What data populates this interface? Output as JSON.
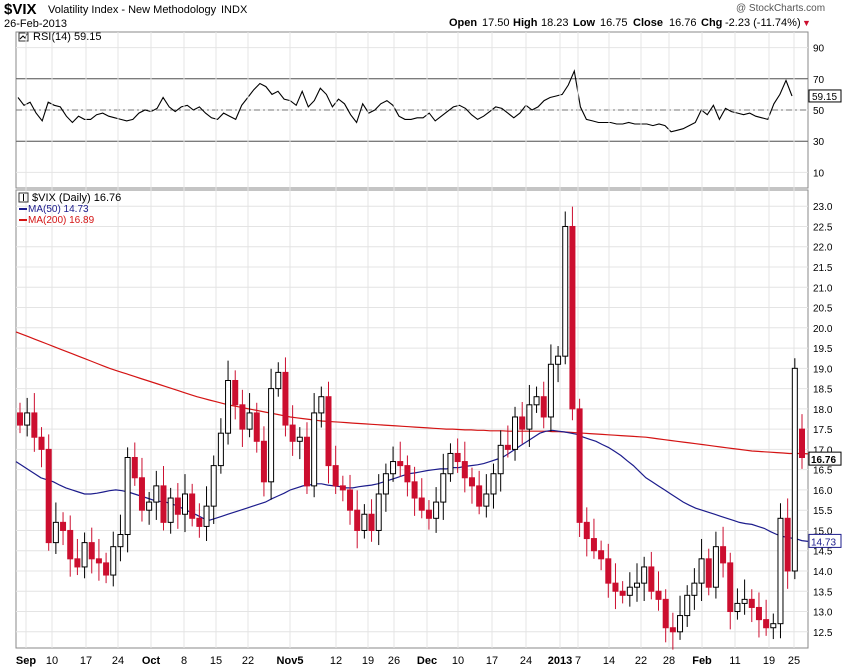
{
  "header": {
    "symbol": "$VIX",
    "name": "Volatility Index - New Methodology",
    "exchange": "INDX",
    "date": "26-Feb-2013",
    "watermark": "@ StockCharts.com",
    "open_label": "Open",
    "open": "17.50",
    "high_label": "High",
    "high": "18.23",
    "low_label": "Low",
    "low": "16.75",
    "close_label": "Close",
    "close": "16.76",
    "chg_label": "Chg",
    "chg": "-2.23 (-11.74%)",
    "chg_arrow": "▼"
  },
  "colors": {
    "up_candle": "#000000",
    "down_candle": "#cc0e2f",
    "ma50": "#1c1c8c",
    "ma200": "#d41414",
    "rsi_line": "#000000",
    "grid": "#e4e4e4"
  },
  "chart_data": [
    {
      "type": "line",
      "title": "RSI(14) 59.15",
      "series": [
        {
          "name": "RSI(14)",
          "last_label": "59.15",
          "values": [
            58,
            53,
            55,
            48,
            43,
            55,
            53,
            52,
            46,
            42,
            46,
            44,
            44,
            47,
            48,
            46,
            45,
            44,
            43,
            44,
            48,
            50,
            49,
            51,
            58,
            52,
            49,
            52,
            53,
            50,
            52,
            48,
            45,
            44,
            48,
            46,
            44,
            53,
            58,
            63,
            67,
            65,
            60,
            62,
            57,
            56,
            53,
            62,
            52,
            56,
            64,
            60,
            52,
            57,
            54,
            47,
            42,
            54,
            48,
            50,
            54,
            56,
            53,
            46,
            44,
            44,
            45,
            45,
            48,
            43,
            46,
            49,
            52,
            53,
            51,
            47,
            44,
            46,
            49,
            52,
            51,
            48,
            45,
            48,
            53,
            50,
            52,
            56,
            58,
            59,
            60,
            66,
            75,
            52,
            44,
            43,
            42,
            42,
            42,
            41,
            41,
            42,
            41,
            41,
            41,
            40,
            41,
            40,
            36,
            37,
            38,
            40,
            42,
            50,
            47,
            53,
            44,
            51,
            49,
            48,
            47,
            48,
            46,
            45,
            44,
            54,
            60,
            69,
            59
          ]
        }
      ],
      "yticks": [
        10,
        30,
        50,
        70,
        90
      ],
      "reference_lines": [
        30,
        50,
        70
      ],
      "ylim": [
        0,
        100
      ]
    },
    {
      "type": "candlestick",
      "title": "$VIX (Daily) 16.76",
      "last_label": "16.76",
      "series": [
        {
          "name": "MA(50)",
          "label": "MA(50) 14.73",
          "values": [
            16.7,
            16.6,
            16.5,
            16.4,
            16.3,
            16.25,
            16.2,
            16.12,
            16.05,
            16.0,
            15.95,
            15.9,
            15.9,
            15.92,
            15.95,
            15.98,
            16.0,
            15.98,
            15.95,
            15.9,
            15.85,
            15.8,
            15.75,
            15.72,
            15.7,
            15.65,
            15.6,
            15.52,
            15.45,
            15.38,
            15.3,
            15.25,
            15.3,
            15.35,
            15.4,
            15.45,
            15.5,
            15.55,
            15.6,
            15.65,
            15.7,
            15.78,
            15.85,
            15.92,
            16.0,
            16.05,
            16.1,
            16.12,
            16.15,
            16.15,
            16.12,
            16.1,
            16.08,
            16.05,
            16.05,
            16.08,
            16.1,
            16.12,
            16.15,
            16.2,
            16.25,
            16.3,
            16.35,
            16.4,
            16.42,
            16.45,
            16.48,
            16.5,
            16.52,
            16.52,
            16.55,
            16.55,
            16.58,
            16.6,
            16.62,
            16.65,
            16.7,
            16.75,
            16.8,
            16.9,
            17.0,
            17.1,
            17.2,
            17.3,
            17.4,
            17.45,
            17.47,
            17.45,
            17.43,
            17.4,
            17.37,
            17.3,
            17.25,
            17.2,
            17.12,
            17.05,
            16.95,
            16.85,
            16.72,
            16.6,
            16.45,
            16.3,
            16.2,
            16.1,
            16.0,
            15.9,
            15.8,
            15.7,
            15.62,
            15.55,
            15.5,
            15.45,
            15.4,
            15.35,
            15.3,
            15.25,
            15.2,
            15.17,
            15.15,
            15.1,
            15.05,
            14.97,
            14.9,
            14.85,
            14.82,
            14.8,
            14.75,
            14.73
          ]
        },
        {
          "name": "MA(200)",
          "label": "MA(200) 16.89",
          "values": [
            19.9,
            19.84,
            19.78,
            19.72,
            19.66,
            19.6,
            19.54,
            19.48,
            19.42,
            19.36,
            19.3,
            19.24,
            19.18,
            19.12,
            19.06,
            19.0,
            18.95,
            18.9,
            18.85,
            18.8,
            18.75,
            18.7,
            18.65,
            18.6,
            18.55,
            18.5,
            18.45,
            18.4,
            18.35,
            18.3,
            18.26,
            18.22,
            18.18,
            18.14,
            18.1,
            18.07,
            18.04,
            18.01,
            17.98,
            17.95,
            17.92,
            17.89,
            17.86,
            17.83,
            17.8,
            17.78,
            17.76,
            17.74,
            17.72,
            17.7,
            17.69,
            17.68,
            17.67,
            17.66,
            17.65,
            17.64,
            17.63,
            17.62,
            17.61,
            17.6,
            17.59,
            17.58,
            17.57,
            17.56,
            17.55,
            17.54,
            17.53,
            17.52,
            17.51,
            17.5,
            17.5,
            17.49,
            17.48,
            17.48,
            17.47,
            17.47,
            17.46,
            17.46,
            17.46,
            17.45,
            17.45,
            17.45,
            17.45,
            17.45,
            17.45,
            17.45,
            17.44,
            17.44,
            17.43,
            17.42,
            17.41,
            17.4,
            17.39,
            17.38,
            17.37,
            17.36,
            17.35,
            17.34,
            17.33,
            17.32,
            17.31,
            17.3,
            17.28,
            17.26,
            17.24,
            17.22,
            17.2,
            17.18,
            17.16,
            17.14,
            17.12,
            17.1,
            17.08,
            17.06,
            17.04,
            17.02,
            17.0,
            16.98,
            16.96,
            16.95,
            16.94,
            16.93,
            16.92,
            16.91,
            16.9,
            16.9,
            16.9,
            16.89
          ]
        }
      ],
      "yticks": [
        12.5,
        13.0,
        13.5,
        14.0,
        14.5,
        15.0,
        15.5,
        16.0,
        16.5,
        17.0,
        17.5,
        18.0,
        18.5,
        19.0,
        19.5,
        20.0,
        20.5,
        21.0,
        21.5,
        22.0,
        22.5,
        23.0
      ],
      "ylim": [
        12.1,
        23.4
      ],
      "x_labels": [
        "Sep",
        "10",
        "17",
        "24",
        "Oct",
        "8",
        "15",
        "22",
        "Nov5",
        "12",
        "19",
        "26",
        "Dec",
        "10",
        "17",
        "24",
        "2013",
        "7",
        "14",
        "22",
        "28",
        "Feb",
        "11",
        "19",
        "25"
      ]
    }
  ]
}
